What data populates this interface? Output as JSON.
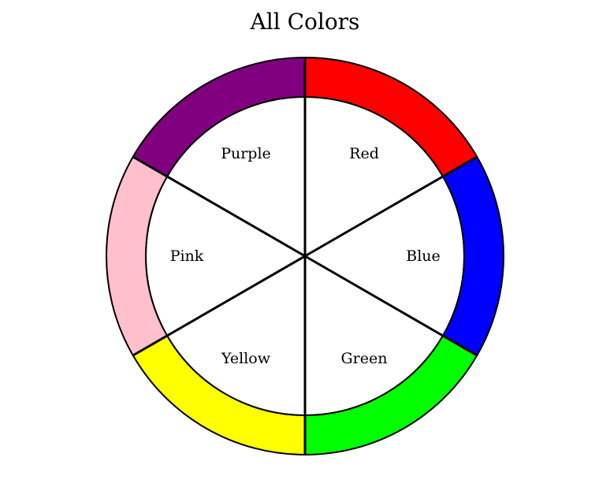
{
  "title": "All Colors",
  "segments": [
    {
      "label": "Red",
      "color": "#ff0000"
    },
    {
      "label": "Blue",
      "color": "#0000ff"
    },
    {
      "label": "Green",
      "color": "#00ff00"
    },
    {
      "label": "Yellow",
      "color": "#ffff00"
    },
    {
      "label": "Pink",
      "color": "#ffc0cb"
    },
    {
      "label": "Purple",
      "color": "#800080"
    }
  ]
}
